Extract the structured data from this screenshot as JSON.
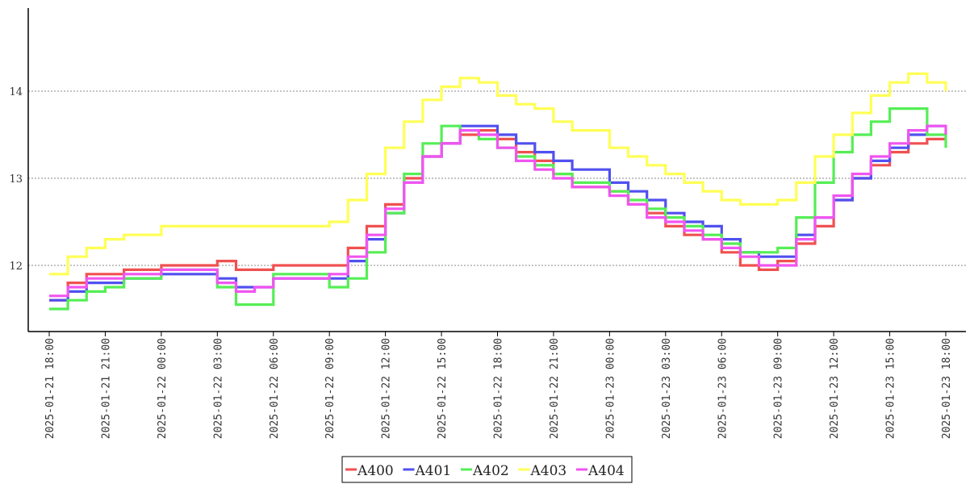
{
  "chart_data": {
    "type": "line",
    "title": "",
    "xlabel": "",
    "ylabel": "",
    "ylim": [
      11.3,
      14.9
    ],
    "xlim": [
      "2025-01-21 17:00",
      "2025-01-23 18:30"
    ],
    "grid": "horizontal dotted",
    "legend_placement": "bottom-center",
    "y_ticks": [
      "12",
      "13",
      "14"
    ],
    "x_ticks": [
      "2025-01-21 18:00",
      "2025-01-21 21:00",
      "2025-01-22 00:00",
      "2025-01-22 03:00",
      "2025-01-22 06:00",
      "2025-01-22 09:00",
      "2025-01-22 12:00",
      "2025-01-22 15:00",
      "2025-01-22 18:00",
      "2025-01-22 21:00",
      "2025-01-23 00:00",
      "2025-01-23 03:00",
      "2025-01-23 06:00",
      "2025-01-23 09:00",
      "2025-01-23 12:00",
      "2025-01-23 15:00",
      "2025-01-23 18:00"
    ],
    "series": [
      {
        "name": "A400",
        "color": "#f05050",
        "points": [
          [
            "2025-01-21 18:00",
            11.6
          ],
          [
            "2025-01-21 19:00",
            11.8
          ],
          [
            "2025-01-21 20:00",
            11.9
          ],
          [
            "2025-01-21 22:00",
            11.95
          ],
          [
            "2025-01-22 00:00",
            12.0
          ],
          [
            "2025-01-22 03:00",
            12.05
          ],
          [
            "2025-01-22 04:00",
            11.95
          ],
          [
            "2025-01-22 06:00",
            12.0
          ],
          [
            "2025-01-22 09:00",
            12.0
          ],
          [
            "2025-01-22 10:00",
            12.2
          ],
          [
            "2025-01-22 11:00",
            12.45
          ],
          [
            "2025-01-22 12:00",
            12.7
          ],
          [
            "2025-01-22 13:00",
            13.0
          ],
          [
            "2025-01-22 14:00",
            13.25
          ],
          [
            "2025-01-22 15:00",
            13.4
          ],
          [
            "2025-01-22 16:00",
            13.5
          ],
          [
            "2025-01-22 17:00",
            13.55
          ],
          [
            "2025-01-22 18:00",
            13.45
          ],
          [
            "2025-01-22 19:00",
            13.3
          ],
          [
            "2025-01-22 20:00",
            13.2
          ],
          [
            "2025-01-22 21:00",
            13.05
          ],
          [
            "2025-01-22 22:00",
            12.9
          ],
          [
            "2025-01-23 00:00",
            12.85
          ],
          [
            "2025-01-23 01:00",
            12.7
          ],
          [
            "2025-01-23 02:00",
            12.6
          ],
          [
            "2025-01-23 03:00",
            12.45
          ],
          [
            "2025-01-23 04:00",
            12.35
          ],
          [
            "2025-01-23 05:00",
            12.3
          ],
          [
            "2025-01-23 06:00",
            12.15
          ],
          [
            "2025-01-23 07:00",
            12.0
          ],
          [
            "2025-01-23 08:00",
            11.95
          ],
          [
            "2025-01-23 09:00",
            12.05
          ],
          [
            "2025-01-23 10:00",
            12.25
          ],
          [
            "2025-01-23 11:00",
            12.45
          ],
          [
            "2025-01-23 12:00",
            12.75
          ],
          [
            "2025-01-23 13:00",
            13.0
          ],
          [
            "2025-01-23 14:00",
            13.15
          ],
          [
            "2025-01-23 15:00",
            13.3
          ],
          [
            "2025-01-23 16:00",
            13.4
          ],
          [
            "2025-01-23 17:00",
            13.45
          ],
          [
            "2025-01-23 18:00",
            13.45
          ]
        ]
      },
      {
        "name": "A401",
        "color": "#5050f0",
        "points": [
          [
            "2025-01-21 18:00",
            11.6
          ],
          [
            "2025-01-21 19:00",
            11.7
          ],
          [
            "2025-01-21 20:00",
            11.8
          ],
          [
            "2025-01-21 22:00",
            11.85
          ],
          [
            "2025-01-22 00:00",
            11.9
          ],
          [
            "2025-01-22 03:00",
            11.85
          ],
          [
            "2025-01-22 04:00",
            11.75
          ],
          [
            "2025-01-22 05:00",
            11.75
          ],
          [
            "2025-01-22 06:00",
            11.85
          ],
          [
            "2025-01-22 09:00",
            11.85
          ],
          [
            "2025-01-22 10:00",
            12.05
          ],
          [
            "2025-01-22 11:00",
            12.3
          ],
          [
            "2025-01-22 12:00",
            12.6
          ],
          [
            "2025-01-22 13:00",
            12.95
          ],
          [
            "2025-01-22 14:00",
            13.25
          ],
          [
            "2025-01-22 15:00",
            13.4
          ],
          [
            "2025-01-22 16:00",
            13.6
          ],
          [
            "2025-01-22 17:00",
            13.6
          ],
          [
            "2025-01-22 18:00",
            13.5
          ],
          [
            "2025-01-22 19:00",
            13.4
          ],
          [
            "2025-01-22 20:00",
            13.3
          ],
          [
            "2025-01-22 21:00",
            13.2
          ],
          [
            "2025-01-22 22:00",
            13.1
          ],
          [
            "2025-01-23 00:00",
            12.95
          ],
          [
            "2025-01-23 01:00",
            12.85
          ],
          [
            "2025-01-23 02:00",
            12.75
          ],
          [
            "2025-01-23 03:00",
            12.6
          ],
          [
            "2025-01-23 04:00",
            12.5
          ],
          [
            "2025-01-23 05:00",
            12.45
          ],
          [
            "2025-01-23 06:00",
            12.3
          ],
          [
            "2025-01-23 07:00",
            12.15
          ],
          [
            "2025-01-23 08:00",
            12.1
          ],
          [
            "2025-01-23 09:00",
            12.1
          ],
          [
            "2025-01-23 10:00",
            12.35
          ],
          [
            "2025-01-23 11:00",
            12.55
          ],
          [
            "2025-01-23 12:00",
            12.75
          ],
          [
            "2025-01-23 13:00",
            13.0
          ],
          [
            "2025-01-23 14:00",
            13.2
          ],
          [
            "2025-01-23 15:00",
            13.35
          ],
          [
            "2025-01-23 16:00",
            13.5
          ],
          [
            "2025-01-23 17:00",
            13.6
          ],
          [
            "2025-01-23 18:00",
            13.6
          ]
        ]
      },
      {
        "name": "A402",
        "color": "#55ee55",
        "points": [
          [
            "2025-01-21 18:00",
            11.5
          ],
          [
            "2025-01-21 19:00",
            11.6
          ],
          [
            "2025-01-21 20:00",
            11.7
          ],
          [
            "2025-01-21 21:00",
            11.75
          ],
          [
            "2025-01-21 22:00",
            11.85
          ],
          [
            "2025-01-22 00:00",
            11.95
          ],
          [
            "2025-01-22 02:00",
            11.95
          ],
          [
            "2025-01-22 03:00",
            11.75
          ],
          [
            "2025-01-22 04:00",
            11.55
          ],
          [
            "2025-01-22 05:00",
            11.55
          ],
          [
            "2025-01-22 06:00",
            11.9
          ],
          [
            "2025-01-22 08:00",
            11.9
          ],
          [
            "2025-01-22 09:00",
            11.75
          ],
          [
            "2025-01-22 10:00",
            11.85
          ],
          [
            "2025-01-22 11:00",
            12.15
          ],
          [
            "2025-01-22 12:00",
            12.6
          ],
          [
            "2025-01-22 13:00",
            13.05
          ],
          [
            "2025-01-22 14:00",
            13.4
          ],
          [
            "2025-01-22 15:00",
            13.6
          ],
          [
            "2025-01-22 16:00",
            13.55
          ],
          [
            "2025-01-22 17:00",
            13.45
          ],
          [
            "2025-01-22 18:00",
            13.35
          ],
          [
            "2025-01-22 19:00",
            13.25
          ],
          [
            "2025-01-22 20:00",
            13.15
          ],
          [
            "2025-01-22 21:00",
            13.05
          ],
          [
            "2025-01-22 22:00",
            12.95
          ],
          [
            "2025-01-23 00:00",
            12.85
          ],
          [
            "2025-01-23 01:00",
            12.75
          ],
          [
            "2025-01-23 02:00",
            12.65
          ],
          [
            "2025-01-23 03:00",
            12.55
          ],
          [
            "2025-01-23 04:00",
            12.45
          ],
          [
            "2025-01-23 05:00",
            12.35
          ],
          [
            "2025-01-23 06:00",
            12.25
          ],
          [
            "2025-01-23 07:00",
            12.15
          ],
          [
            "2025-01-23 08:00",
            12.15
          ],
          [
            "2025-01-23 09:00",
            12.2
          ],
          [
            "2025-01-23 10:00",
            12.55
          ],
          [
            "2025-01-23 11:00",
            12.95
          ],
          [
            "2025-01-23 12:00",
            13.3
          ],
          [
            "2025-01-23 13:00",
            13.5
          ],
          [
            "2025-01-23 14:00",
            13.65
          ],
          [
            "2025-01-23 15:00",
            13.8
          ],
          [
            "2025-01-23 16:00",
            13.8
          ],
          [
            "2025-01-23 17:00",
            13.5
          ],
          [
            "2025-01-23 18:00",
            13.35
          ]
        ]
      },
      {
        "name": "A403",
        "color": "#ffff55",
        "points": [
          [
            "2025-01-21 18:00",
            11.9
          ],
          [
            "2025-01-21 19:00",
            12.1
          ],
          [
            "2025-01-21 20:00",
            12.2
          ],
          [
            "2025-01-21 21:00",
            12.3
          ],
          [
            "2025-01-21 22:00",
            12.35
          ],
          [
            "2025-01-22 00:00",
            12.45
          ],
          [
            "2025-01-22 03:00",
            12.45
          ],
          [
            "2025-01-22 06:00",
            12.45
          ],
          [
            "2025-01-22 09:00",
            12.5
          ],
          [
            "2025-01-22 10:00",
            12.75
          ],
          [
            "2025-01-22 11:00",
            13.05
          ],
          [
            "2025-01-22 12:00",
            13.35
          ],
          [
            "2025-01-22 13:00",
            13.65
          ],
          [
            "2025-01-22 14:00",
            13.9
          ],
          [
            "2025-01-22 15:00",
            14.05
          ],
          [
            "2025-01-22 16:00",
            14.15
          ],
          [
            "2025-01-22 17:00",
            14.1
          ],
          [
            "2025-01-22 18:00",
            13.95
          ],
          [
            "2025-01-22 19:00",
            13.85
          ],
          [
            "2025-01-22 20:00",
            13.8
          ],
          [
            "2025-01-22 21:00",
            13.65
          ],
          [
            "2025-01-22 22:00",
            13.55
          ],
          [
            "2025-01-23 00:00",
            13.35
          ],
          [
            "2025-01-23 01:00",
            13.25
          ],
          [
            "2025-01-23 02:00",
            13.15
          ],
          [
            "2025-01-23 03:00",
            13.05
          ],
          [
            "2025-01-23 04:00",
            12.95
          ],
          [
            "2025-01-23 05:00",
            12.85
          ],
          [
            "2025-01-23 06:00",
            12.75
          ],
          [
            "2025-01-23 07:00",
            12.7
          ],
          [
            "2025-01-23 08:00",
            12.7
          ],
          [
            "2025-01-23 09:00",
            12.75
          ],
          [
            "2025-01-23 10:00",
            12.95
          ],
          [
            "2025-01-23 11:00",
            13.25
          ],
          [
            "2025-01-23 12:00",
            13.5
          ],
          [
            "2025-01-23 13:00",
            13.75
          ],
          [
            "2025-01-23 14:00",
            13.95
          ],
          [
            "2025-01-23 15:00",
            14.1
          ],
          [
            "2025-01-23 16:00",
            14.2
          ],
          [
            "2025-01-23 17:00",
            14.1
          ],
          [
            "2025-01-23 18:00",
            14.0
          ]
        ]
      },
      {
        "name": "A404",
        "color": "#f055f0",
        "points": [
          [
            "2025-01-21 18:00",
            11.65
          ],
          [
            "2025-01-21 19:00",
            11.75
          ],
          [
            "2025-01-21 20:00",
            11.85
          ],
          [
            "2025-01-21 22:00",
            11.9
          ],
          [
            "2025-01-22 00:00",
            11.95
          ],
          [
            "2025-01-22 03:00",
            11.8
          ],
          [
            "2025-01-22 04:00",
            11.7
          ],
          [
            "2025-01-22 05:00",
            11.75
          ],
          [
            "2025-01-22 06:00",
            11.85
          ],
          [
            "2025-01-22 09:00",
            11.9
          ],
          [
            "2025-01-22 10:00",
            12.1
          ],
          [
            "2025-01-22 11:00",
            12.35
          ],
          [
            "2025-01-22 12:00",
            12.65
          ],
          [
            "2025-01-22 13:00",
            12.95
          ],
          [
            "2025-01-22 14:00",
            13.25
          ],
          [
            "2025-01-22 15:00",
            13.4
          ],
          [
            "2025-01-22 16:00",
            13.55
          ],
          [
            "2025-01-22 17:00",
            13.5
          ],
          [
            "2025-01-22 18:00",
            13.35
          ],
          [
            "2025-01-22 19:00",
            13.2
          ],
          [
            "2025-01-22 20:00",
            13.1
          ],
          [
            "2025-01-22 21:00",
            13.0
          ],
          [
            "2025-01-22 22:00",
            12.9
          ],
          [
            "2025-01-23 00:00",
            12.8
          ],
          [
            "2025-01-23 01:00",
            12.7
          ],
          [
            "2025-01-23 02:00",
            12.55
          ],
          [
            "2025-01-23 03:00",
            12.5
          ],
          [
            "2025-01-23 04:00",
            12.4
          ],
          [
            "2025-01-23 05:00",
            12.3
          ],
          [
            "2025-01-23 06:00",
            12.2
          ],
          [
            "2025-01-23 07:00",
            12.1
          ],
          [
            "2025-01-23 08:00",
            12.0
          ],
          [
            "2025-01-23 09:00",
            12.0
          ],
          [
            "2025-01-23 10:00",
            12.3
          ],
          [
            "2025-01-23 11:00",
            12.55
          ],
          [
            "2025-01-23 12:00",
            12.8
          ],
          [
            "2025-01-23 13:00",
            13.05
          ],
          [
            "2025-01-23 14:00",
            13.25
          ],
          [
            "2025-01-23 15:00",
            13.4
          ],
          [
            "2025-01-23 16:00",
            13.55
          ],
          [
            "2025-01-23 17:00",
            13.6
          ],
          [
            "2025-01-23 18:00",
            13.5
          ]
        ]
      }
    ]
  }
}
